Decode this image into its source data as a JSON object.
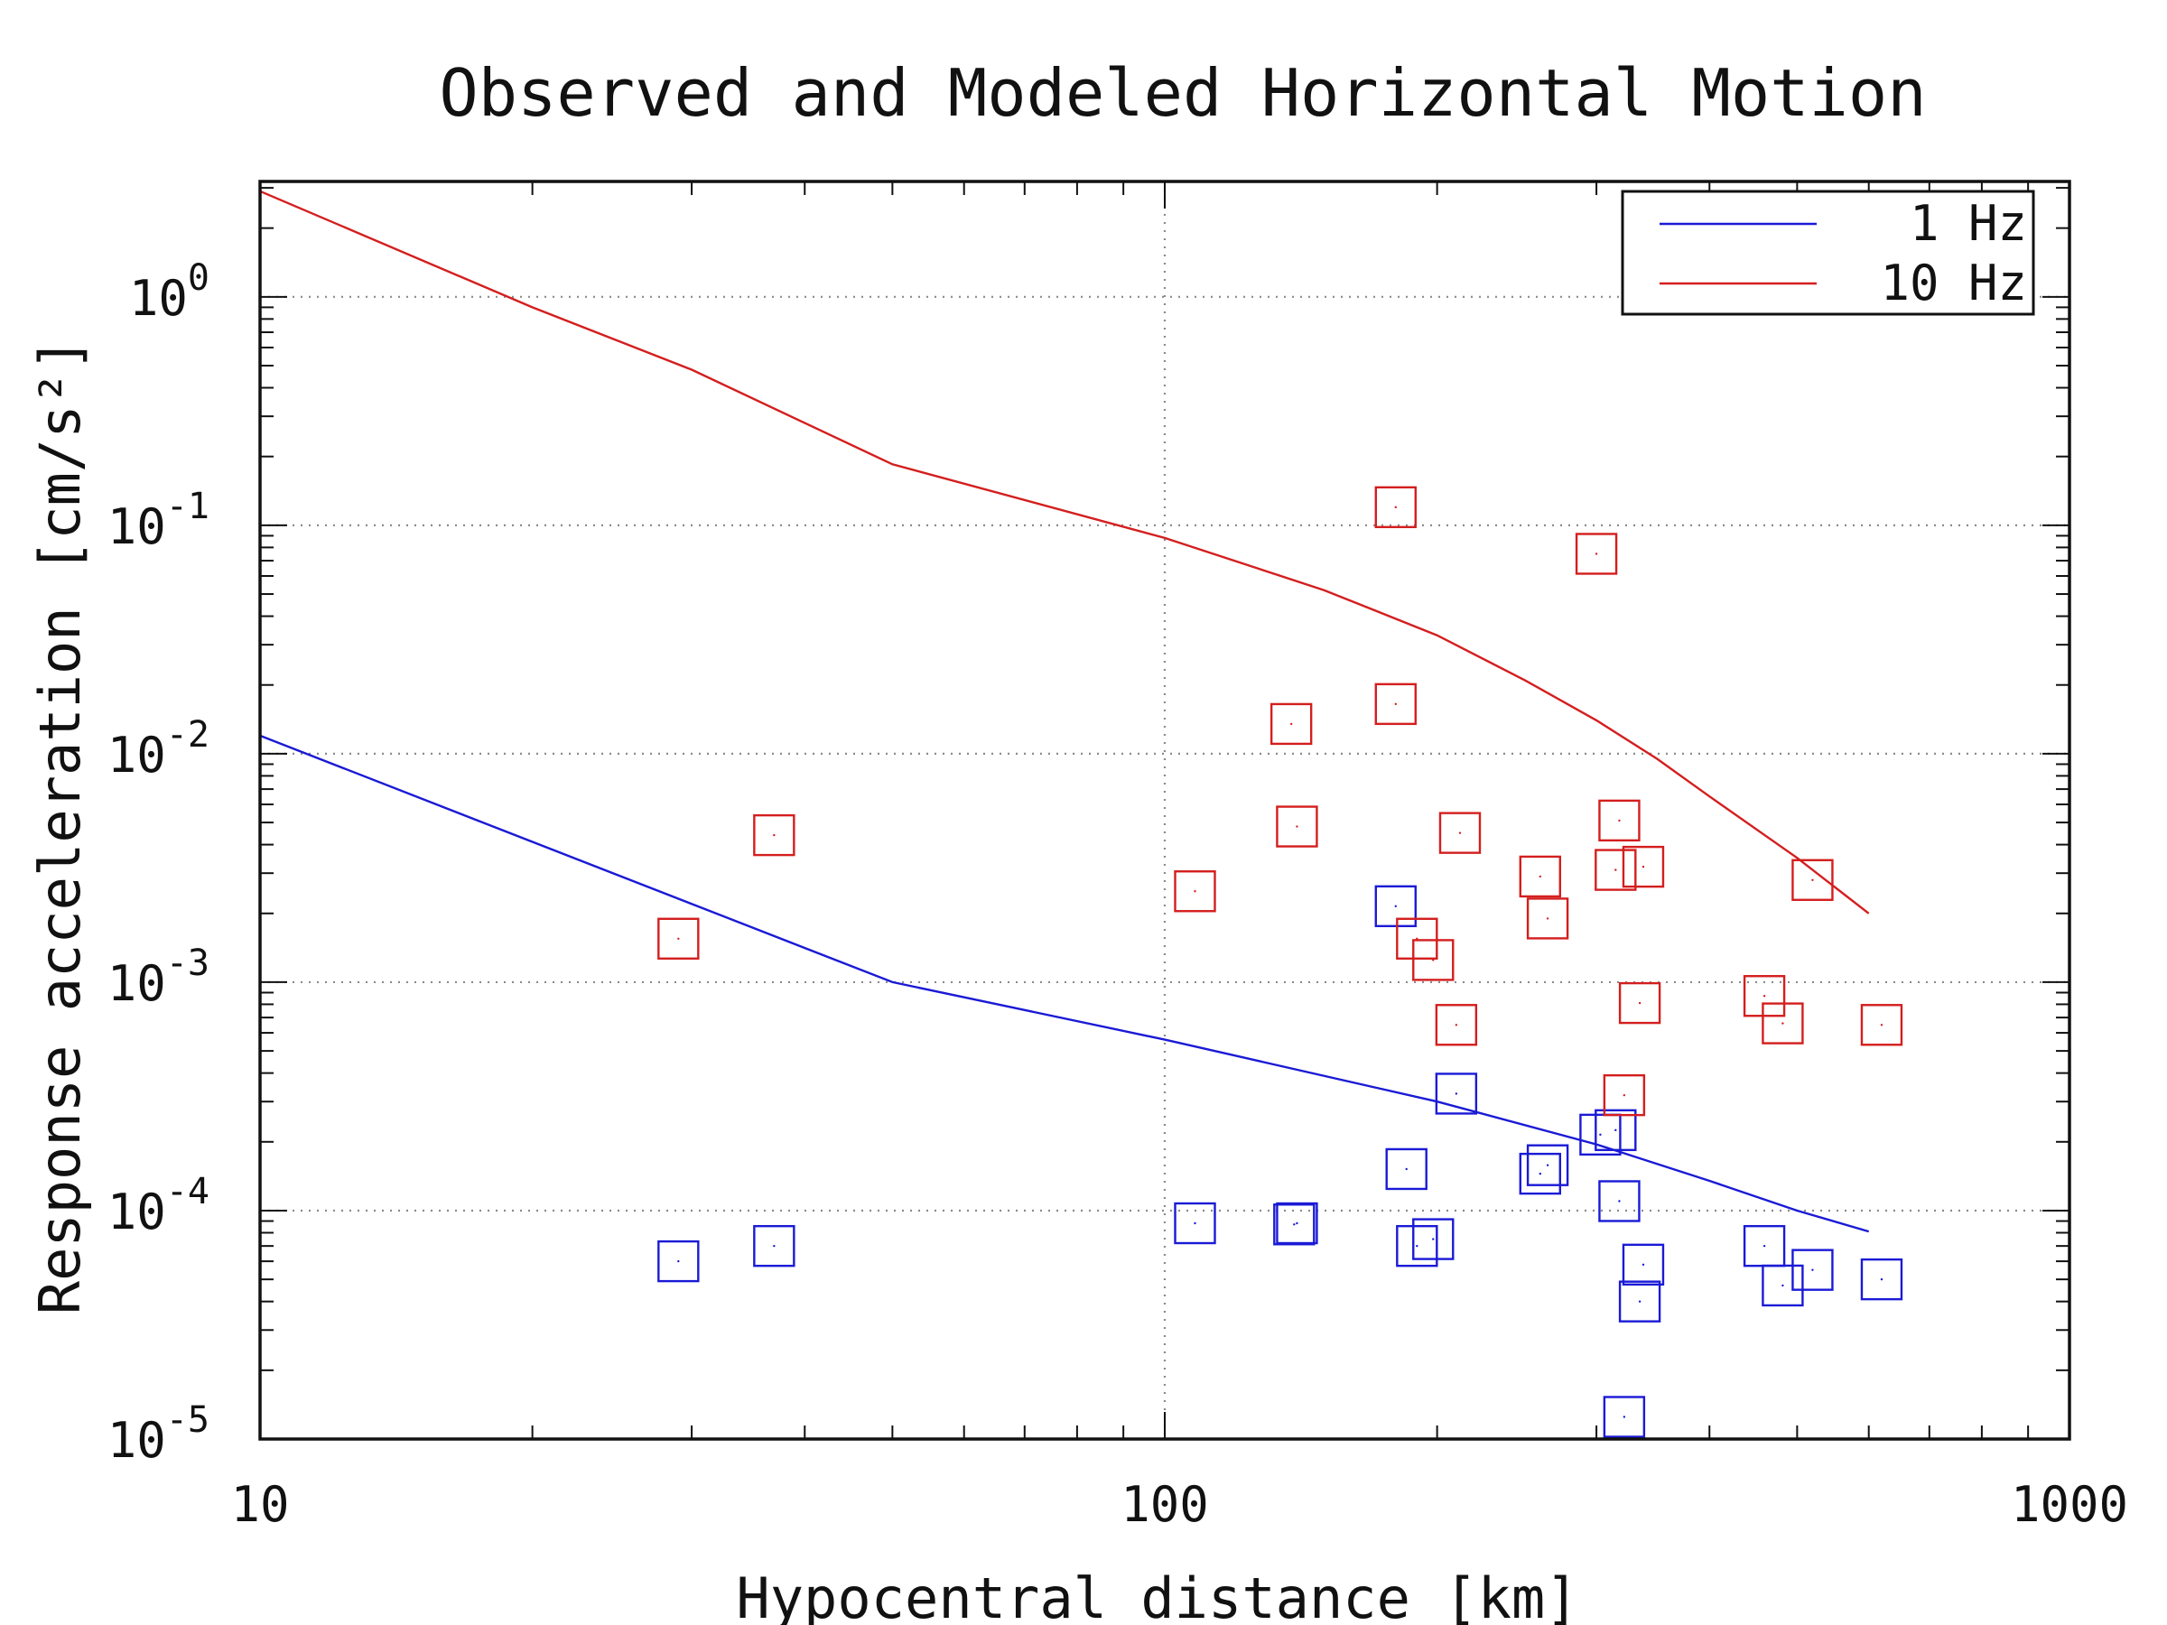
{
  "chart_data": {
    "type": "scatter",
    "title": "Observed and Modeled Horizontal Motion",
    "xlabel": "Hypocentral distance [km]",
    "ylabel": "Response acceleration [cm/s²]",
    "xscale": "log",
    "yscale": "log",
    "xlim": [
      10,
      1000
    ],
    "ylim": [
      1e-05,
      3.2
    ],
    "x_ticks": [
      {
        "value": 10,
        "label": "10"
      },
      {
        "value": 100,
        "label": "100"
      },
      {
        "value": 1000,
        "label": "1000"
      }
    ],
    "y_ticks": [
      {
        "value": 1,
        "mantissa": "10",
        "exponent": "0"
      },
      {
        "value": 0.1,
        "mantissa": "10",
        "exponent": "-1"
      },
      {
        "value": 0.01,
        "mantissa": "10",
        "exponent": "-2"
      },
      {
        "value": 0.001,
        "mantissa": "10",
        "exponent": "-3"
      },
      {
        "value": 0.0001,
        "mantissa": "10",
        "exponent": "-4"
      },
      {
        "value": 1e-05,
        "mantissa": "10",
        "exponent": "-5"
      }
    ],
    "grid": true,
    "legend_position": "top-right",
    "series": [
      {
        "name": "1 Hz",
        "color": "#1a1ad6",
        "model": {
          "x": [
            10,
            50,
            100,
            200,
            300,
            400,
            500,
            600
          ],
          "y": [
            0.012,
            0.001,
            0.00056,
            0.0003,
            0.000195,
            0.000135,
            0.0001,
            8.1e-05
          ]
        },
        "observed": {
          "x": [
            29,
            37,
            108,
            139,
            140,
            180,
            185,
            190,
            198,
            210,
            260,
            265,
            303,
            315,
            318,
            322,
            335,
            338,
            460,
            482,
            520,
            620
          ],
          "y": [
            6e-05,
            7e-05,
            8.8e-05,
            8.7e-05,
            8.8e-05,
            0.00215,
            0.000152,
            7e-05,
            7.5e-05,
            0.000325,
            0.000145,
            0.000158,
            0.000215,
            0.000225,
            0.00011,
            1.25e-05,
            4e-05,
            5.8e-05,
            7e-05,
            4.7e-05,
            5.5e-05,
            5e-05
          ]
        }
      },
      {
        "name": "10 Hz",
        "color": "#d41e1e",
        "model": {
          "x": [
            10,
            20,
            30,
            50,
            100,
            150,
            200,
            250,
            300,
            350,
            400,
            500,
            600
          ],
          "y": [
            2.9,
            0.9,
            0.48,
            0.185,
            0.088,
            0.052,
            0.033,
            0.021,
            0.014,
            0.0095,
            0.0065,
            0.0035,
            0.002
          ]
        },
        "observed": {
          "x": [
            29,
            37,
            108,
            138,
            140,
            180,
            180,
            190,
            198,
            210,
            212,
            260,
            265,
            300,
            315,
            318,
            322,
            335,
            338,
            460,
            482,
            520,
            620
          ],
          "y": [
            0.00155,
            0.0044,
            0.0025,
            0.0135,
            0.0048,
            0.12,
            0.0165,
            0.00155,
            0.00125,
            0.00065,
            0.0045,
            0.0029,
            0.0019,
            0.075,
            0.0031,
            0.0051,
            0.00032,
            0.00081,
            0.0032,
            0.00087,
            0.00066,
            0.0028,
            0.00065
          ]
        }
      }
    ]
  }
}
